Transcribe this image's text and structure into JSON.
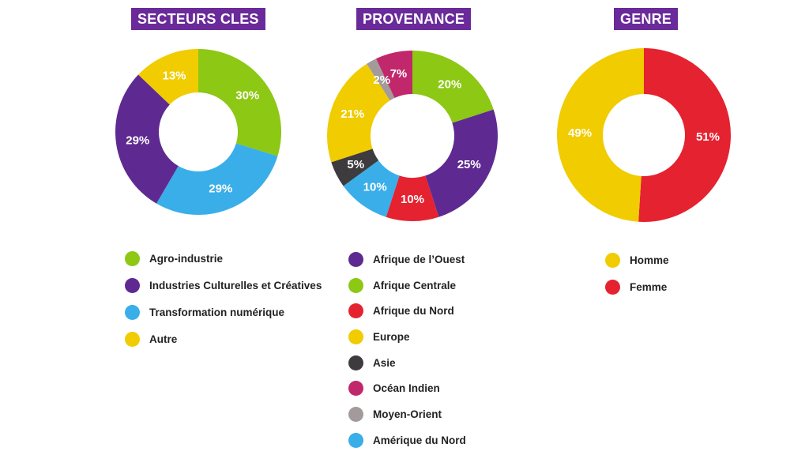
{
  "chart_data": [
    {
      "type": "pie",
      "title": "SECTEURS CLES",
      "slices": [
        {
          "label": "Agro-industrie",
          "value": 30,
          "value_label": "30%",
          "color": "#8cc814"
        },
        {
          "label": "Transformation numérique",
          "value": 29,
          "value_label": "29%",
          "color": "#3aaee8"
        },
        {
          "label": "Industries Culturelles et Créatives",
          "value": 29,
          "value_label": "29%",
          "color": "#5e2a91"
        },
        {
          "label": "Autre",
          "value": 13,
          "value_label": "13%",
          "color": "#f0cc00"
        }
      ],
      "legend": [
        {
          "label": "Agro-industrie",
          "color": "#8cc814"
        },
        {
          "label": "Industries Culturelles et Créatives",
          "color": "#5e2a91"
        },
        {
          "label": "Transformation numérique",
          "color": "#3aaee8"
        },
        {
          "label": "Autre",
          "color": "#f0cc00"
        }
      ],
      "legend_position": "bottom"
    },
    {
      "type": "pie",
      "title": "PROVENANCE",
      "slices": [
        {
          "label": "Afrique Centrale",
          "value": 20,
          "value_label": "20%",
          "color": "#8cc814"
        },
        {
          "label": "Afrique de l’Ouest",
          "value": 25,
          "value_label": "25%",
          "color": "#5e2a91"
        },
        {
          "label": "Afrique du Nord",
          "value": 10,
          "value_label": "10%",
          "color": "#e52230"
        },
        {
          "label": "Amérique du Nord",
          "value": 10,
          "value_label": "10%",
          "color": "#3aaee8"
        },
        {
          "label": "Asie",
          "value": 5,
          "value_label": "5%",
          "color": "#3d3b3d"
        },
        {
          "label": "Europe",
          "value": 21,
          "value_label": "21%",
          "color": "#f0cc00"
        },
        {
          "label": "Moyen-Orient",
          "value": 2,
          "value_label": "2%",
          "color": "#a39b9b"
        },
        {
          "label": "Océan Indien",
          "value": 7,
          "value_label": "7%",
          "color": "#c0286b"
        }
      ],
      "legend": [
        {
          "label": "Afrique de l’Ouest",
          "color": "#5e2a91"
        },
        {
          "label": "Afrique Centrale",
          "color": "#8cc814"
        },
        {
          "label": "Afrique du Nord",
          "color": "#e52230"
        },
        {
          "label": "Europe",
          "color": "#f0cc00"
        },
        {
          "label": "Asie",
          "color": "#3d3b3d"
        },
        {
          "label": "Océan Indien",
          "color": "#c0286b"
        },
        {
          "label": "Moyen-Orient",
          "color": "#a39b9b"
        },
        {
          "label": "Amérique du Nord",
          "color": "#3aaee8"
        }
      ],
      "legend_position": "bottom"
    },
    {
      "type": "pie",
      "title": "GENRE",
      "slices": [
        {
          "label": "Femme",
          "value": 51,
          "value_label": "51%",
          "color": "#e52230"
        },
        {
          "label": "Homme",
          "value": 49,
          "value_label": "49%",
          "color": "#f0cc00"
        }
      ],
      "legend": [
        {
          "label": "Homme",
          "color": "#f0cc00"
        },
        {
          "label": "Femme",
          "color": "#e52230"
        }
      ],
      "legend_position": "bottom"
    }
  ]
}
